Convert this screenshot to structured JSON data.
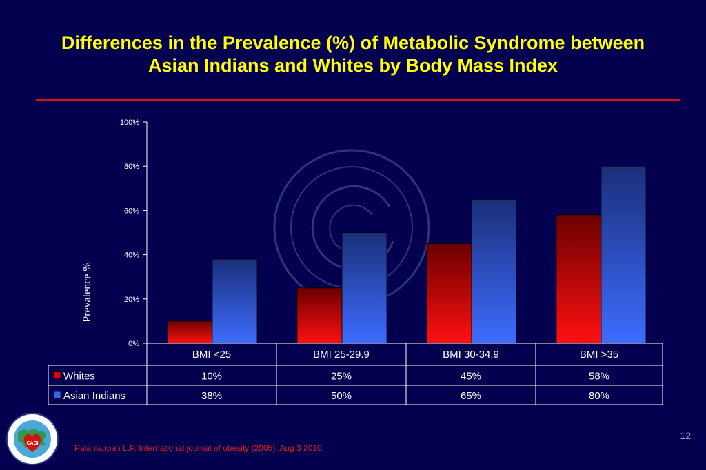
{
  "slide": {
    "title_line1": "Differences in the Prevalence (%) of Metabolic Syndrome between",
    "title_line2": "Asian Indians and Whites by Body Mass Index",
    "slide_number": "12",
    "citation": "Palaniappan L.P.  International journal of obesity (2005). Aug 3 2010.",
    "title_color": "#ffff00",
    "background_color": "#02004f",
    "rule_color": "#e01010",
    "logo": {
      "icon": "cadi-research-foundation-seal",
      "ring_text": "CORONARY ARTERY DISEASE IN ASIAN INDIANS",
      "center_text": "CADI",
      "bottom_text": "CADI RESEARCH FOUNDATION"
    }
  },
  "chart_data": {
    "type": "bar",
    "title": "",
    "xlabel": "",
    "ylabel": "Prevalence %",
    "categories": [
      "BMI <25",
      "BMI 25-29.9",
      "BMI 30-34.9",
      "BMI >35"
    ],
    "series": [
      {
        "name": "Whites",
        "values": [
          10,
          25,
          45,
          58
        ],
        "labels": [
          "10%",
          "25%",
          "45%",
          "58%"
        ],
        "color": "#e00000"
      },
      {
        "name": "Asian Indians",
        "values": [
          38,
          50,
          65,
          80
        ],
        "labels": [
          "38%",
          "50%",
          "65%",
          "80%"
        ],
        "color": "#3366ee"
      }
    ],
    "ylim": [
      0,
      100
    ],
    "yticks": [
      0,
      20,
      40,
      60,
      80,
      100
    ],
    "ytick_labels": [
      "0%",
      "20%",
      "40%",
      "60%",
      "80%",
      "100%"
    ],
    "grid": false,
    "legend": "data-table",
    "data_table": true
  }
}
